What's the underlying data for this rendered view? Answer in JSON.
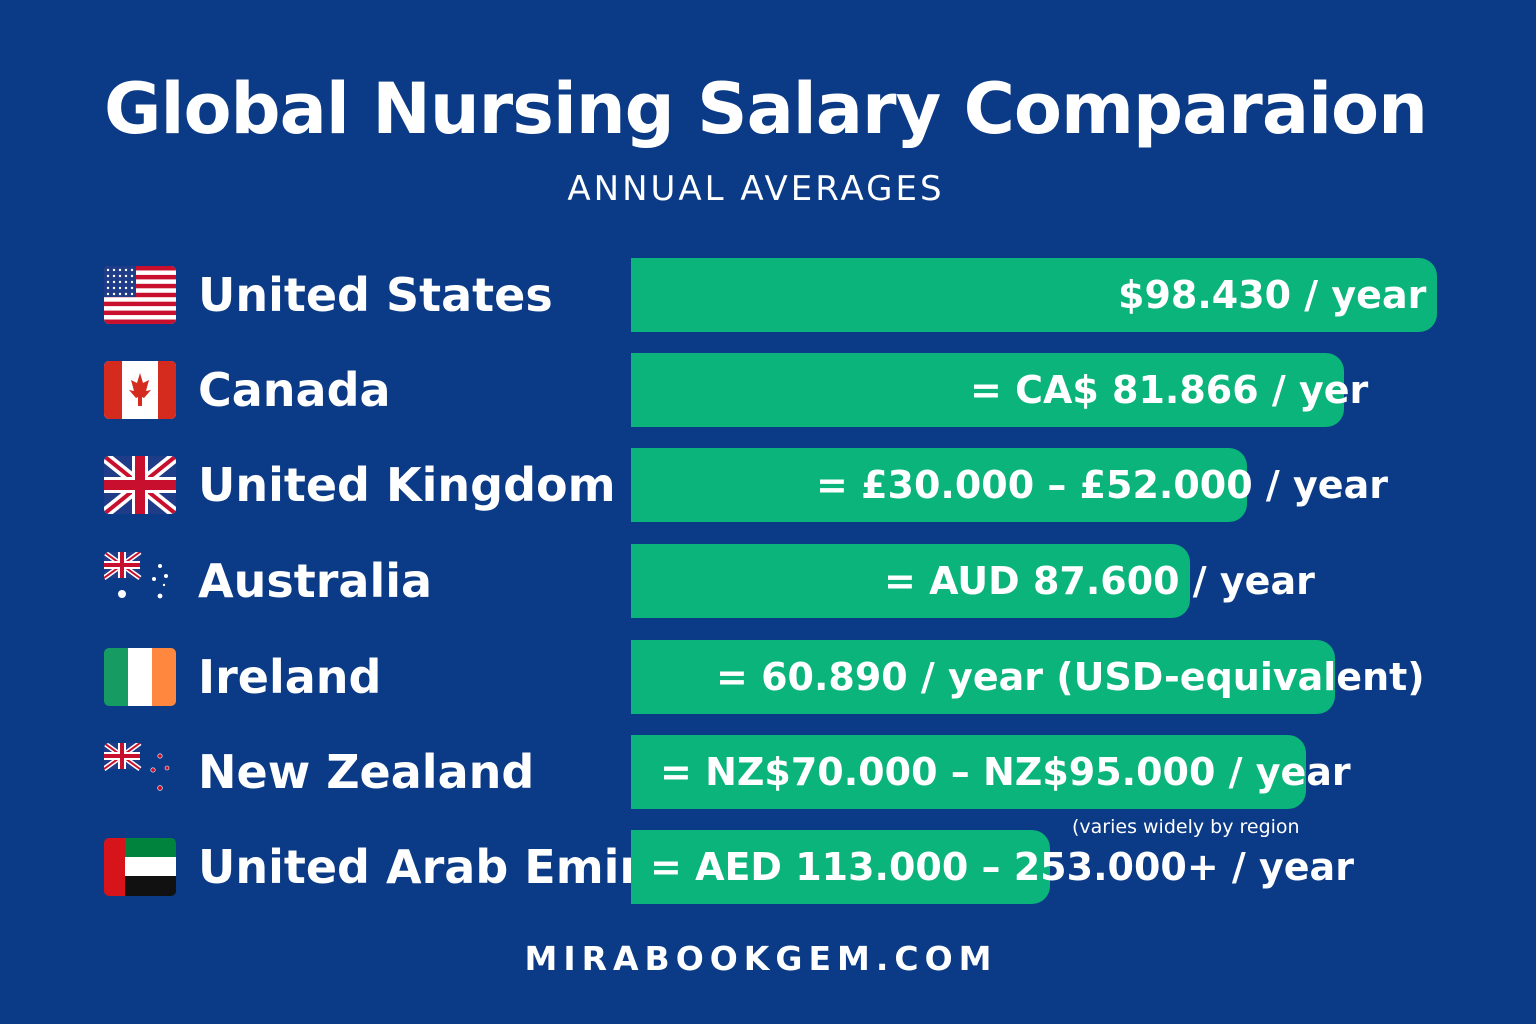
{
  "chart_data": {
    "type": "bar",
    "orientation": "horizontal",
    "title": "Global Nursing Salary Comparaion",
    "subtitle": "ANNUAL AVERAGES",
    "categories": [
      "United States",
      "Canada",
      "United Kingdom",
      "Australia",
      "Ireland",
      "New Zealand",
      "United Arab Emirates"
    ],
    "values": [
      98430,
      81866,
      52000,
      87600,
      60890,
      95000,
      253000
    ],
    "value_labels": [
      "$98.430 / year",
      "= CA$ 81.866 / yer",
      "= £30.000 – £52.000 / year",
      "= AUD 87.600 / year",
      "= 60.890 / year (USD-equivalent)",
      "= NZ$70.000 – NZ$95.000 / year",
      "= AED 113.000 – 253.000+ / year"
    ],
    "bar_fraction": [
      1.0,
      0.885,
      0.764,
      0.694,
      0.873,
      0.838,
      0.52
    ],
    "annotations": [
      {
        "category": "United Arab Emirates",
        "text": "(varies widely by region"
      }
    ],
    "bar_color": "#0bb47a",
    "background_color": "#0b3a86"
  },
  "footer": "MIRABOOKGEM.COM"
}
